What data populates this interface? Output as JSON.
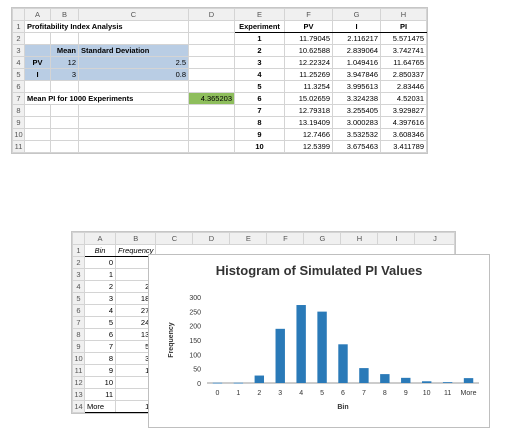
{
  "sheet1": {
    "columns": [
      "A",
      "B",
      "C",
      "D",
      "E",
      "F",
      "G",
      "H"
    ],
    "rows": [
      "1",
      "2",
      "3",
      "4",
      "5",
      "6",
      "7",
      "8",
      "9",
      "10",
      "11"
    ],
    "title": "Profitability Index Analysis",
    "mean_header": "Mean",
    "sd_header": "Standard Deviation",
    "pv_label": "PV",
    "pv_mean": "12",
    "pv_sd": "2.5",
    "i_label": "I",
    "i_mean": "3",
    "i_sd": "0.8",
    "mean_pi_label": "Mean PI for 1000 Experiments",
    "mean_pi_value": "4.365203",
    "exp_headers": [
      "Experiment",
      "PV",
      "I",
      "PI"
    ],
    "experiments": [
      [
        "1",
        "11.79045",
        "2.116217",
        "5.571475"
      ],
      [
        "2",
        "10.62588",
        "2.839064",
        "3.742741"
      ],
      [
        "3",
        "12.22324",
        "1.049416",
        "11.64765"
      ],
      [
        "4",
        "11.25269",
        "3.947846",
        "2.850337"
      ],
      [
        "5",
        "11.3254",
        "3.995613",
        "2.83446"
      ],
      [
        "6",
        "15.02659",
        "3.324238",
        "4.52031"
      ],
      [
        "7",
        "12.79318",
        "3.255405",
        "3.929827"
      ],
      [
        "8",
        "13.19409",
        "3.000283",
        "4.397616"
      ],
      [
        "9",
        "12.7466",
        "3.532532",
        "3.608346"
      ],
      [
        "10",
        "12.5399",
        "3.675463",
        "3.411789"
      ]
    ]
  },
  "sheet2": {
    "columns": [
      "A",
      "B",
      "C",
      "D",
      "E",
      "F",
      "G",
      "H",
      "I",
      "J"
    ],
    "rows": [
      "1",
      "2",
      "3",
      "4",
      "5",
      "6",
      "7",
      "8",
      "9",
      "10",
      "11",
      "12",
      "13",
      "14"
    ],
    "bin_header": "Bin",
    "freq_header": "Frequency",
    "bins": [
      [
        "0",
        "1"
      ],
      [
        "1",
        "1"
      ],
      [
        "2",
        "26"
      ],
      [
        "3",
        "189"
      ],
      [
        "4",
        "272"
      ],
      [
        "5",
        "249"
      ],
      [
        "6",
        "135"
      ],
      [
        "7",
        "52"
      ],
      [
        "8",
        "31"
      ],
      [
        "9",
        "18"
      ],
      [
        "10",
        "6"
      ],
      [
        "11",
        "3"
      ],
      [
        "More",
        "17"
      ]
    ]
  },
  "chart_data": {
    "type": "bar",
    "title": "Histogram of Simulated PI Values",
    "xlabel": "Bin",
    "ylabel": "Frequency",
    "categories": [
      "0",
      "1",
      "2",
      "3",
      "4",
      "5",
      "6",
      "7",
      "8",
      "9",
      "10",
      "11",
      "More"
    ],
    "values": [
      1,
      1,
      26,
      189,
      272,
      249,
      135,
      52,
      31,
      18,
      6,
      3,
      17
    ],
    "ylim": [
      0,
      300
    ],
    "yticks": [
      "0",
      "50",
      "100",
      "150",
      "200",
      "250",
      "300"
    ],
    "bar_color": "#2a7ab8",
    "grid": false,
    "legend": "none"
  },
  "colors": {
    "input_blue": "#b9cde4",
    "output_green": "#8ebe5c"
  }
}
